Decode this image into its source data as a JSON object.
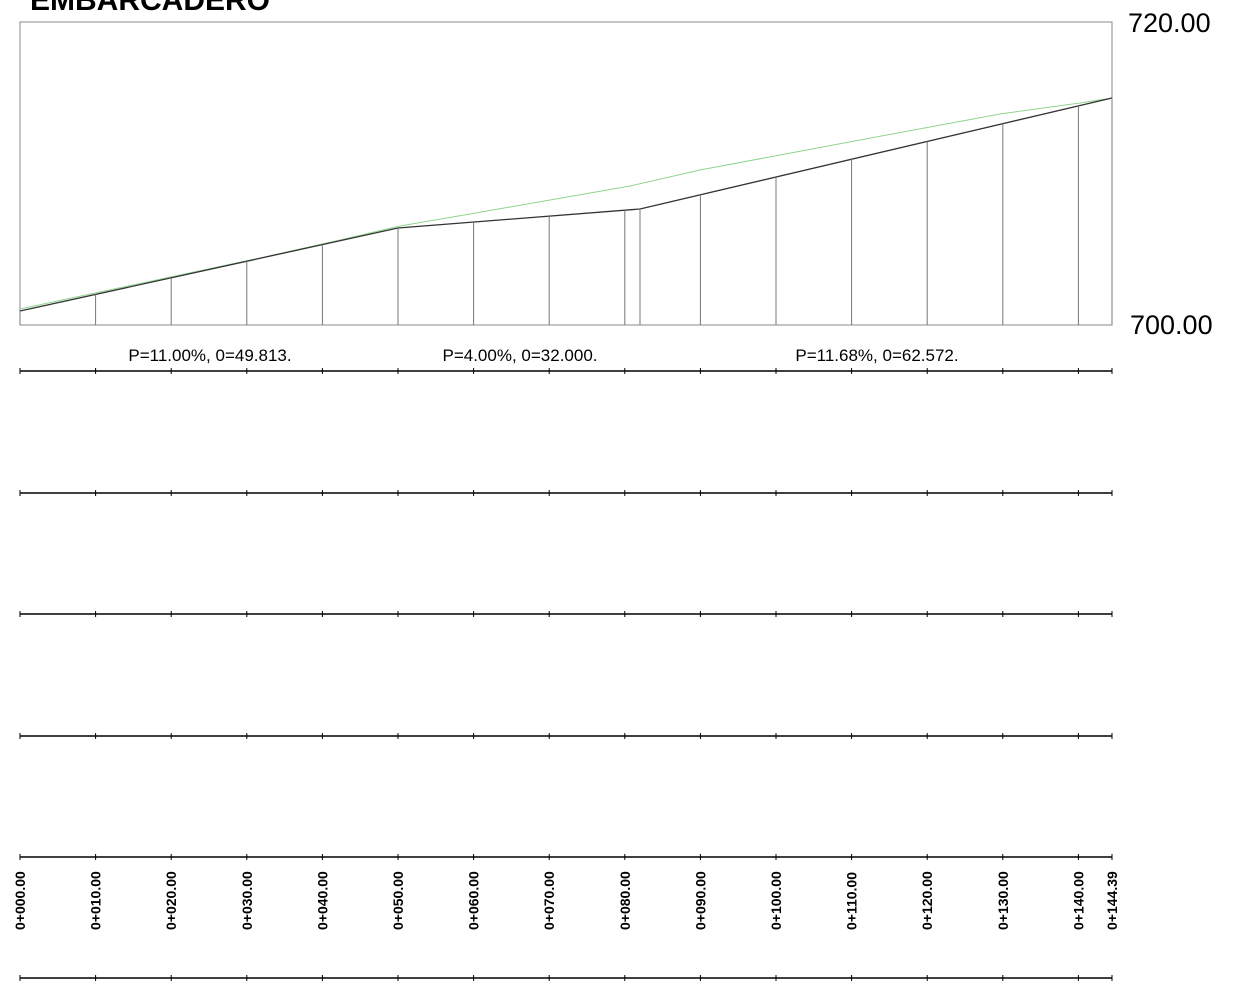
{
  "header": {
    "title": "EMBARCADERO",
    "elevation_top": "720.00",
    "elevation_bottom": "700.00"
  },
  "grades": [
    "P=11.00%, 0=49.813.",
    "P=4.00%, 0=32.000.",
    "P=11.68%, 0=62.572."
  ],
  "stations": [
    "0+000.00",
    "0+010.00",
    "0+020.00",
    "0+030.00",
    "0+040.00",
    "0+050.00",
    "0+060.00",
    "0+070.00",
    "0+080.00",
    "0+090.00",
    "0+100.00",
    "0+110.00",
    "0+120.00",
    "0+130.00",
    "0+140.00",
    "0+144.39"
  ]
}
